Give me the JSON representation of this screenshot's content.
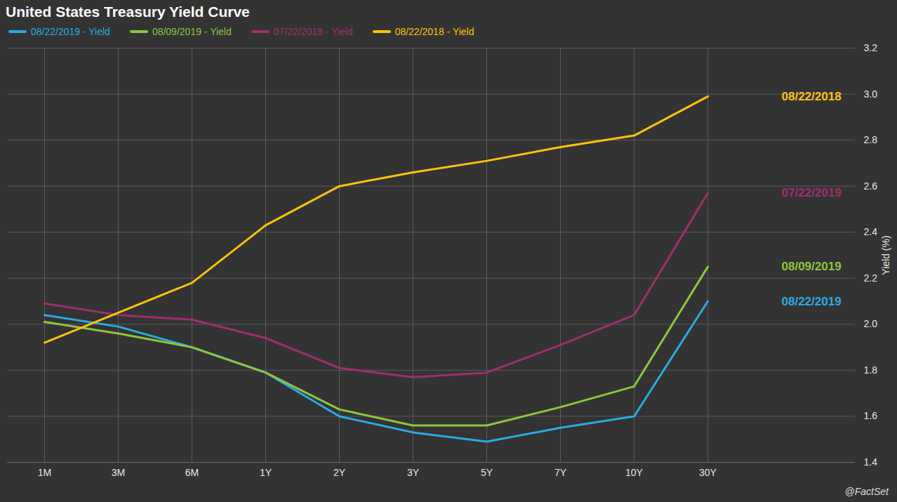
{
  "chart_data": {
    "type": "line",
    "title": "United States Treasury Yield Curve",
    "y_label": "Yield (%)",
    "source": "@FactSet",
    "categories": [
      "1M",
      "3M",
      "6M",
      "1Y",
      "2Y",
      "3Y",
      "5Y",
      "7Y",
      "10Y",
      "30Y"
    ],
    "series": [
      {
        "name": "08/22/2019 - Yield",
        "label": "08/22/2019",
        "color": "#29abe2",
        "values": [
          2.04,
          1.99,
          1.9,
          1.79,
          1.6,
          1.53,
          1.49,
          1.55,
          1.6,
          2.1
        ]
      },
      {
        "name": "08/09/2019 - Yield",
        "label": "08/09/2019",
        "color": "#8dc63f",
        "values": [
          2.01,
          1.96,
          1.9,
          1.79,
          1.63,
          1.56,
          1.56,
          1.64,
          1.73,
          2.25
        ]
      },
      {
        "name": "07/22/2019 - Yield",
        "label": "07/22/2019",
        "color": "#9e2f6a",
        "values": [
          2.09,
          2.04,
          2.02,
          1.94,
          1.81,
          1.77,
          1.79,
          1.91,
          2.04,
          2.57
        ]
      },
      {
        "name": "08/22/2018 - Yield",
        "label": "08/22/2018",
        "color": "#ffc20e",
        "values": [
          1.92,
          2.05,
          2.18,
          2.43,
          2.6,
          2.66,
          2.71,
          2.77,
          2.82,
          2.99
        ]
      }
    ],
    "ylim": [
      1.4,
      3.2
    ],
    "yticks": [
      1.4,
      1.6,
      1.8,
      {
        "value": 2,
        "label": "2.0"
      },
      2.2,
      2.4,
      2.6,
      2.8,
      {
        "value": 3,
        "label": "3.0"
      },
      3.2
    ],
    "grid": true,
    "legend": "top-left"
  }
}
